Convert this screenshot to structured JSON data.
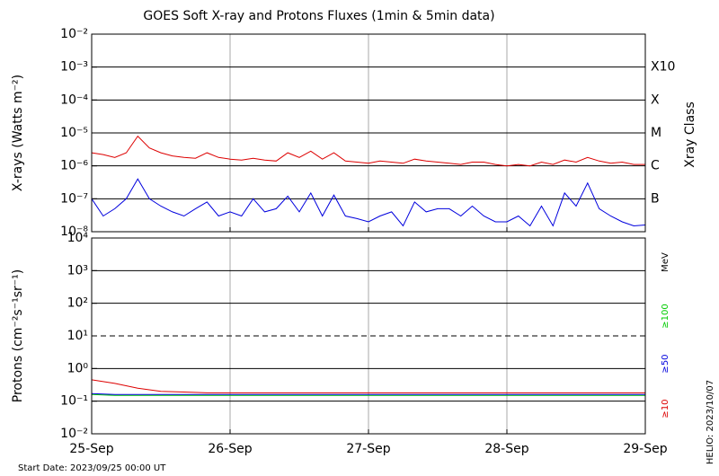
{
  "chart_data": [
    {
      "type": "line",
      "title": "GOES Soft X-ray and Protons Fluxes   (1min & 5min data)",
      "y_label": "X-rays (Watts m⁻²)",
      "y2_label": "Xray Class",
      "log_y": true,
      "grid": true,
      "x": [
        0,
        2,
        4,
        6,
        8,
        10,
        12,
        14,
        16,
        18,
        20,
        22,
        24,
        26,
        28,
        30,
        32,
        34,
        36,
        38,
        40,
        42,
        44,
        46,
        48,
        50,
        52,
        54,
        56,
        58,
        60,
        62,
        64,
        66,
        68,
        70,
        72,
        74,
        76,
        78,
        80,
        82,
        84,
        86,
        88,
        90,
        92,
        94,
        96
      ],
      "xlim": [
        0,
        96
      ],
      "xticks": [
        0,
        24,
        48,
        72,
        96
      ],
      "ylim": [
        1e-08,
        0.01
      ],
      "yticks": [
        {
          "value": 1e-08,
          "label": "10⁻⁸"
        },
        {
          "value": 1e-07,
          "label": "10⁻⁷"
        },
        {
          "value": 1e-06,
          "label": "10⁻⁶"
        },
        {
          "value": 1e-05,
          "label": "10⁻⁵"
        },
        {
          "value": 0.0001,
          "label": "10⁻⁴"
        },
        {
          "value": 0.001,
          "label": "10⁻³"
        },
        {
          "value": 0.01,
          "label": "10⁻²"
        }
      ],
      "class_ticks": [
        {
          "value": 1e-07,
          "label": "B"
        },
        {
          "value": 1e-06,
          "label": "C"
        },
        {
          "value": 1e-05,
          "label": "M"
        },
        {
          "value": 0.0001,
          "label": "X"
        },
        {
          "value": 0.001,
          "label": "X10"
        }
      ],
      "series": [
        {
          "color": "#dd0000",
          "values": [
            2.5e-06,
            2.2e-06,
            1.8e-06,
            2.5e-06,
            8e-06,
            3.5e-06,
            2.5e-06,
            2e-06,
            1.8e-06,
            1.7e-06,
            2.5e-06,
            1.8e-06,
            1.6e-06,
            1.5e-06,
            1.7e-06,
            1.5e-06,
            1.4e-06,
            2.5e-06,
            1.8e-06,
            2.8e-06,
            1.6e-06,
            2.5e-06,
            1.4e-06,
            1.3e-06,
            1.2e-06,
            1.4e-06,
            1.3e-06,
            1.2e-06,
            1.6e-06,
            1.4e-06,
            1.3e-06,
            1.2e-06,
            1.1e-06,
            1.3e-06,
            1.3e-06,
            1.1e-06,
            1e-06,
            1.1e-06,
            1e-06,
            1.3e-06,
            1.1e-06,
            1.5e-06,
            1.3e-06,
            1.8e-06,
            1.4e-06,
            1.2e-06,
            1.3e-06,
            1.1e-06,
            1.1e-06
          ]
        },
        {
          "color": "#0000dd",
          "values": [
            1e-07,
            3e-08,
            5e-08,
            1e-07,
            4e-07,
            1e-07,
            6e-08,
            4e-08,
            3e-08,
            5e-08,
            8e-08,
            3e-08,
            4e-08,
            3e-08,
            1e-07,
            4e-08,
            5e-08,
            1.2e-07,
            4e-08,
            1.5e-07,
            3e-08,
            1.3e-07,
            3e-08,
            2.5e-08,
            2e-08,
            3e-08,
            4e-08,
            1.5e-08,
            8e-08,
            4e-08,
            5e-08,
            5e-08,
            3e-08,
            6e-08,
            3e-08,
            2e-08,
            2e-08,
            3e-08,
            1.5e-08,
            6e-08,
            1.5e-08,
            1.5e-07,
            6e-08,
            3e-07,
            5e-08,
            3e-08,
            2e-08,
            1.5e-08,
            1.6e-08
          ]
        }
      ]
    },
    {
      "type": "line",
      "y_label": "Protons (cm⁻²s⁻¹sr⁻¹)",
      "y2_label": "MeV",
      "log_y": true,
      "grid": true,
      "threshold": 10,
      "x": [
        0,
        4,
        8,
        12,
        16,
        20,
        24,
        28,
        32,
        36,
        40,
        44,
        48,
        52,
        56,
        60,
        64,
        68,
        72,
        76,
        80,
        84,
        88,
        92,
        96
      ],
      "xlim": [
        0,
        96
      ],
      "xticks": [
        {
          "value": 0,
          "label": "25-Sep"
        },
        {
          "value": 24,
          "label": "26-Sep"
        },
        {
          "value": 48,
          "label": "27-Sep"
        },
        {
          "value": 72,
          "label": "28-Sep"
        },
        {
          "value": 96,
          "label": "29-Sep"
        }
      ],
      "ylim": [
        0.01,
        10000
      ],
      "yticks": [
        {
          "value": 0.01,
          "label": "10⁻²"
        },
        {
          "value": 0.1,
          "label": "10⁻¹"
        },
        {
          "value": 1,
          "label": "10⁰"
        },
        {
          "value": 10,
          "label": "10¹"
        },
        {
          "value": 100,
          "label": "10²"
        },
        {
          "value": 1000,
          "label": "10³"
        },
        {
          "value": 10000,
          "label": "10⁴"
        }
      ],
      "series": [
        {
          "name": "≥100",
          "color": "#00cc00",
          "values": [
            0.16,
            0.15,
            0.15,
            0.15,
            0.15,
            0.15,
            0.15,
            0.15,
            0.15,
            0.15,
            0.15,
            0.15,
            0.15,
            0.15,
            0.15,
            0.15,
            0.15,
            0.15,
            0.15,
            0.15,
            0.15,
            0.15,
            0.15,
            0.15,
            0.15
          ]
        },
        {
          "name": "≥50",
          "color": "#0000dd",
          "values": [
            0.17,
            0.16,
            0.16,
            0.16,
            0.16,
            0.16,
            0.16,
            0.16,
            0.16,
            0.16,
            0.16,
            0.16,
            0.16,
            0.16,
            0.16,
            0.16,
            0.16,
            0.16,
            0.16,
            0.16,
            0.16,
            0.16,
            0.16,
            0.16,
            0.16
          ]
        },
        {
          "name": "≥10",
          "color": "#dd0000",
          "values": [
            0.45,
            0.35,
            0.25,
            0.2,
            0.19,
            0.18,
            0.18,
            0.18,
            0.18,
            0.18,
            0.18,
            0.18,
            0.18,
            0.18,
            0.18,
            0.18,
            0.18,
            0.18,
            0.18,
            0.18,
            0.18,
            0.18,
            0.18,
            0.18,
            0.18
          ]
        }
      ]
    }
  ],
  "start_date": "Start Date: 2023/09/25 00:00 UT",
  "credit": "HELIO: 2023/10/07"
}
